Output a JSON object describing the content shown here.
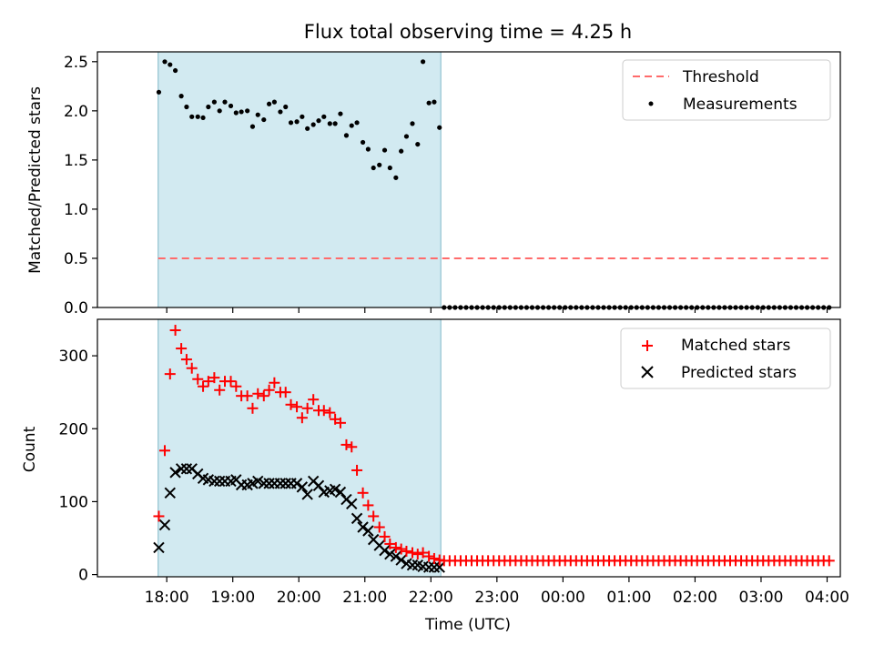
{
  "chart_data": {
    "title": "Flux total observing time = 4.25 h",
    "xlabel": "Time (UTC)",
    "time_ticks": [
      "18:00",
      "19:00",
      "20:00",
      "21:00",
      "22:00",
      "23:00",
      "00:00",
      "01:00",
      "02:00",
      "03:00",
      "04:00"
    ],
    "time_tick_hours": [
      18,
      19,
      20,
      21,
      22,
      23,
      24,
      25,
      26,
      27,
      28
    ],
    "xlim_hours": [
      16.95,
      28.2
    ],
    "observing_window_hours": [
      17.87,
      22.15
    ],
    "colors": {
      "window_fill": "#add8e6",
      "threshold": "#ff6b6b",
      "measurements": "#000000",
      "matched": "#ff0000",
      "predicted": "#000000"
    },
    "top": {
      "type": "scatter",
      "ylabel": "Matched/Predicted stars",
      "ylim": [
        0,
        2.6
      ],
      "yticks": [
        0.0,
        0.5,
        1.0,
        1.5,
        2.0,
        2.5
      ],
      "ytick_labels": [
        "0.0",
        "0.5",
        "1.0",
        "1.5",
        "2.0",
        "2.5"
      ],
      "threshold": {
        "name": "Threshold",
        "value": 0.5,
        "x_range": [
          17.87,
          28.05
        ]
      },
      "legend": [
        "Threshold",
        "Measurements"
      ],
      "measurements": {
        "name": "Measurements",
        "hours": [
          17.88,
          17.97,
          18.05,
          18.13,
          18.22,
          18.3,
          18.38,
          18.47,
          18.55,
          18.63,
          18.72,
          18.8,
          18.88,
          18.97,
          19.05,
          19.13,
          19.22,
          19.3,
          19.38,
          19.47,
          19.55,
          19.63,
          19.72,
          19.8,
          19.88,
          19.97,
          20.05,
          20.13,
          20.22,
          20.3,
          20.38,
          20.47,
          20.55,
          20.63,
          20.72,
          20.8,
          20.88,
          20.97,
          21.05,
          21.13,
          21.22,
          21.3,
          21.38,
          21.47,
          21.55,
          21.63,
          21.72,
          21.8,
          21.88,
          21.97,
          22.05,
          22.13
        ],
        "values": [
          2.19,
          2.5,
          2.47,
          2.41,
          2.15,
          2.04,
          1.94,
          1.94,
          1.93,
          2.04,
          2.09,
          2.0,
          2.09,
          2.05,
          1.98,
          1.99,
          2.0,
          1.84,
          1.96,
          1.91,
          2.07,
          2.09,
          1.99,
          2.04,
          1.88,
          1.89,
          1.94,
          1.82,
          1.86,
          1.9,
          1.94,
          1.87,
          1.87,
          1.97,
          1.75,
          1.85,
          1.88,
          1.68,
          1.61,
          1.42,
          1.45,
          1.6,
          1.42,
          1.32,
          1.59,
          1.74,
          1.87,
          1.66,
          2.5,
          2.08,
          2.09,
          1.83
        ],
        "zero_hours_start": 22.2,
        "zero_hours_end": 28.05,
        "zero_hours_step": 0.0833,
        "zero_value": 0.0
      }
    },
    "bottom": {
      "type": "scatter",
      "ylabel": "Count",
      "ylim": [
        -3,
        350
      ],
      "yticks": [
        0,
        100,
        200,
        300
      ],
      "ytick_labels": [
        "0",
        "100",
        "200",
        "300"
      ],
      "legend": [
        "Matched stars",
        "Predicted stars"
      ],
      "matched": {
        "name": "Matched stars",
        "hours": [
          17.88,
          17.97,
          18.05,
          18.13,
          18.22,
          18.3,
          18.38,
          18.47,
          18.55,
          18.63,
          18.72,
          18.8,
          18.88,
          18.97,
          19.05,
          19.13,
          19.22,
          19.3,
          19.38,
          19.47,
          19.55,
          19.63,
          19.72,
          19.8,
          19.88,
          19.97,
          20.05,
          20.13,
          20.22,
          20.3,
          20.38,
          20.47,
          20.55,
          20.63,
          20.72,
          20.8,
          20.88,
          20.97,
          21.05,
          21.13,
          21.22,
          21.3,
          21.38,
          21.47,
          21.55,
          21.63,
          21.72,
          21.8,
          21.88,
          21.97,
          22.05,
          22.13
        ],
        "values": [
          80,
          170,
          275,
          335,
          310,
          295,
          283,
          268,
          258,
          265,
          270,
          253,
          265,
          265,
          258,
          245,
          245,
          228,
          248,
          245,
          253,
          263,
          250,
          250,
          233,
          230,
          215,
          228,
          240,
          225,
          225,
          222,
          213,
          208,
          178,
          175,
          143,
          112,
          95,
          80,
          65,
          52,
          42,
          37,
          35,
          32,
          30,
          28,
          30,
          25,
          22,
          20
        ],
        "flat_hours_start": 22.2,
        "flat_hours_end": 28.05,
        "flat_hours_step": 0.0833,
        "flat_value": 19
      },
      "predicted": {
        "name": "Predicted stars",
        "hours": [
          17.88,
          17.97,
          18.05,
          18.13,
          18.22,
          18.3,
          18.38,
          18.47,
          18.55,
          18.63,
          18.72,
          18.8,
          18.88,
          18.97,
          19.05,
          19.13,
          19.22,
          19.3,
          19.38,
          19.47,
          19.55,
          19.63,
          19.72,
          19.8,
          19.88,
          19.97,
          20.05,
          20.13,
          20.22,
          20.3,
          20.38,
          20.47,
          20.55,
          20.63,
          20.72,
          20.8,
          20.88,
          20.97,
          21.05,
          21.13,
          21.22,
          21.3,
          21.38,
          21.47,
          21.55,
          21.63,
          21.72,
          21.8,
          21.88,
          21.97,
          22.05,
          22.13
        ],
        "values": [
          37,
          68,
          112,
          140,
          145,
          145,
          145,
          138,
          132,
          130,
          128,
          128,
          128,
          128,
          130,
          123,
          123,
          125,
          128,
          125,
          125,
          125,
          125,
          125,
          125,
          125,
          120,
          110,
          128,
          122,
          113,
          115,
          117,
          113,
          103,
          97,
          77,
          65,
          60,
          48,
          40,
          33,
          28,
          25,
          20,
          15,
          13,
          13,
          11,
          10,
          10,
          10
        ]
      }
    }
  }
}
